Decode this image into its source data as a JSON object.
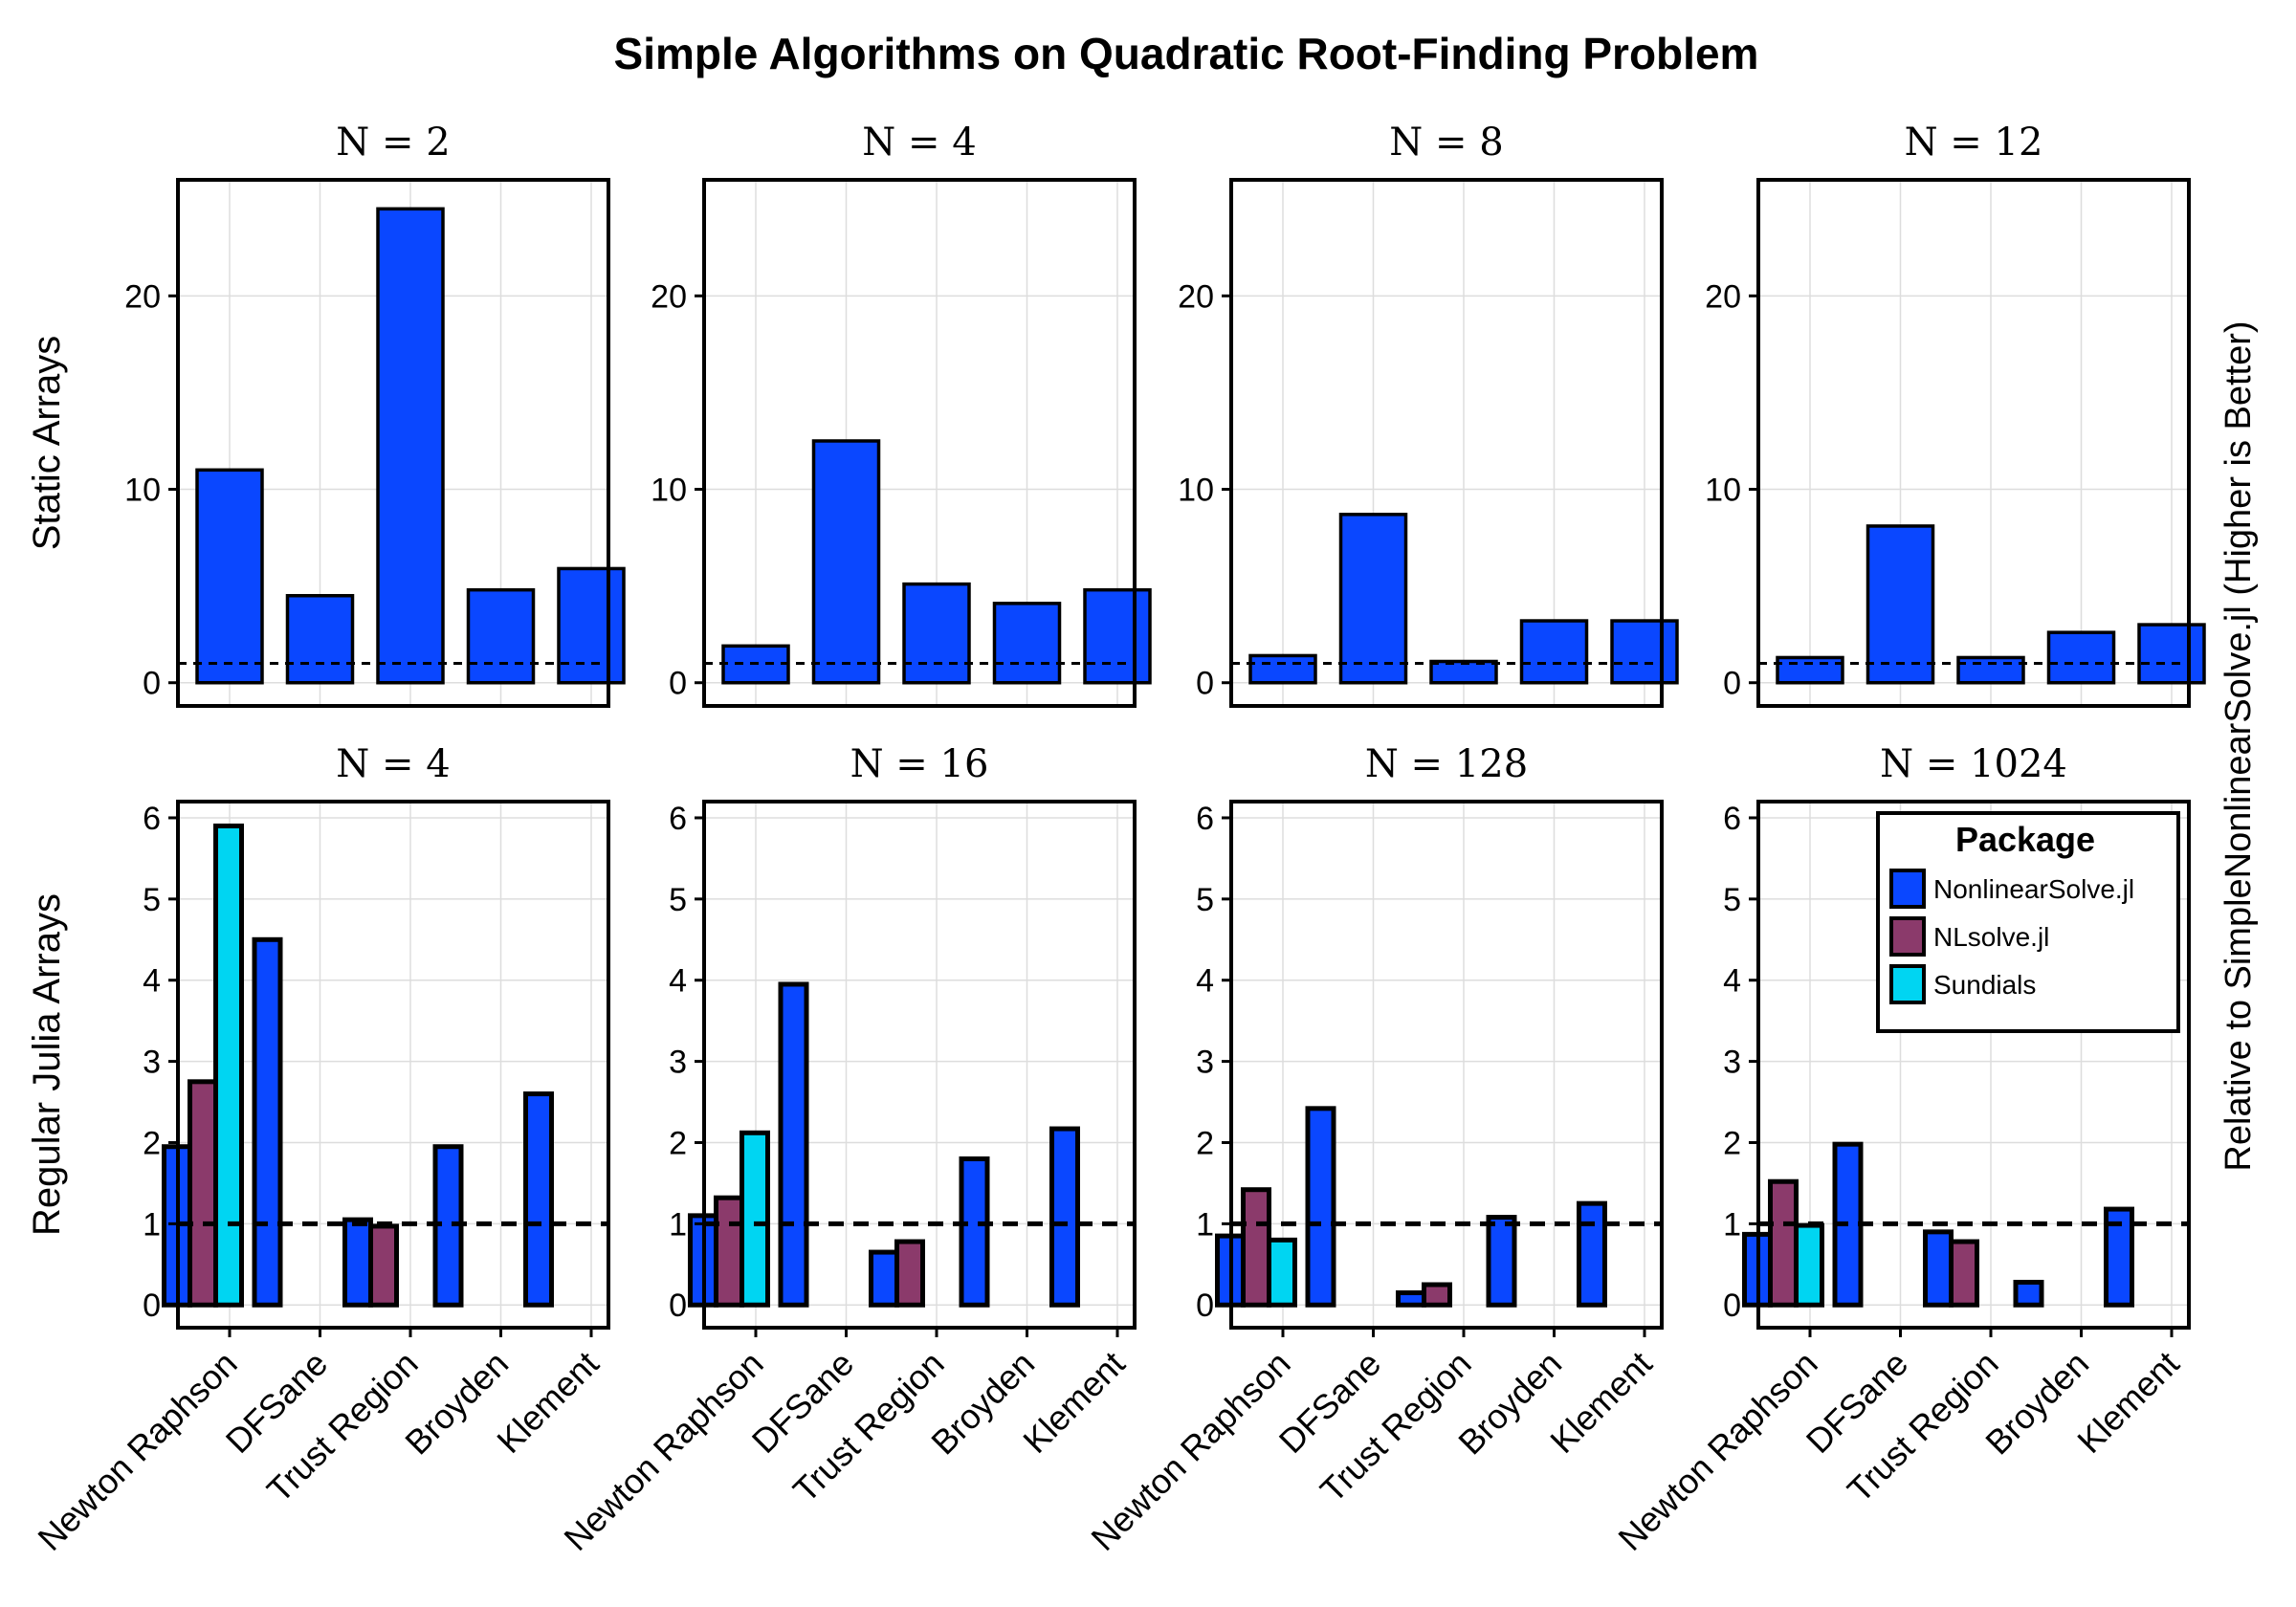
{
  "chart_data": {
    "type": "bar",
    "title": "Simple Algorithms on Quadratic Root-Finding Problem",
    "right_ylabel": "Relative to SimpleNonlinearSolve.jl (Higher is Better)",
    "categories": [
      "Newton Raphson",
      "DFSane",
      "Trust Region",
      "Broyden",
      "Klement"
    ],
    "reference_line": 1,
    "colors": {
      "NonlinearSolve.jl": "#0a47ff",
      "NLsolve.jl": "#8b3a6b",
      "Sundials": "#00d5f2"
    },
    "legend": {
      "title": "Package",
      "placement": "top-right",
      "entries": [
        "NonlinearSolve.jl",
        "NLsolve.jl",
        "Sundials"
      ]
    },
    "rows": [
      {
        "ylabel": "Static Arrays",
        "ylim": [
          -1.2,
          26
        ],
        "yticks": [
          0,
          10,
          20
        ],
        "panels": [
          {
            "title": "N = 2",
            "series": [
              {
                "name": "NonlinearSolve.jl",
                "values": [
                  11.0,
                  4.5,
                  24.5,
                  4.8,
                  5.9
                ]
              }
            ]
          },
          {
            "title": "N = 4",
            "series": [
              {
                "name": "NonlinearSolve.jl",
                "values": [
                  1.9,
                  12.5,
                  5.1,
                  4.1,
                  4.8
                ]
              }
            ]
          },
          {
            "title": "N = 8",
            "series": [
              {
                "name": "NonlinearSolve.jl",
                "values": [
                  1.4,
                  8.7,
                  1.1,
                  3.2,
                  3.2
                ]
              }
            ]
          },
          {
            "title": "N = 12",
            "series": [
              {
                "name": "NonlinearSolve.jl",
                "values": [
                  1.3,
                  8.1,
                  1.3,
                  2.6,
                  3.0
                ]
              }
            ]
          }
        ]
      },
      {
        "ylabel": "Regular Julia Arrays",
        "ylim": [
          -0.28,
          6.2
        ],
        "yticks": [
          0,
          1,
          2,
          3,
          4,
          5,
          6
        ],
        "panels": [
          {
            "title": "N = 4",
            "series": [
              {
                "name": "NonlinearSolve.jl",
                "values": [
                  1.95,
                  4.5,
                  1.05,
                  1.95,
                  2.6
                ]
              },
              {
                "name": "NLsolve.jl",
                "values": [
                  2.75,
                  null,
                  0.97,
                  null,
                  null
                ]
              },
              {
                "name": "Sundials",
                "values": [
                  5.9,
                  null,
                  null,
                  null,
                  null
                ]
              }
            ]
          },
          {
            "title": "N = 16",
            "series": [
              {
                "name": "NonlinearSolve.jl",
                "values": [
                  1.1,
                  3.95,
                  0.65,
                  1.8,
                  2.17
                ]
              },
              {
                "name": "NLsolve.jl",
                "values": [
                  1.32,
                  null,
                  0.78,
                  null,
                  null
                ]
              },
              {
                "name": "Sundials",
                "values": [
                  2.12,
                  null,
                  null,
                  null,
                  null
                ]
              }
            ]
          },
          {
            "title": "N = 128",
            "series": [
              {
                "name": "NonlinearSolve.jl",
                "values": [
                  0.85,
                  2.42,
                  0.15,
                  1.08,
                  1.25
                ]
              },
              {
                "name": "NLsolve.jl",
                "values": [
                  1.42,
                  null,
                  0.25,
                  null,
                  null
                ]
              },
              {
                "name": "Sundials",
                "values": [
                  0.8,
                  null,
                  null,
                  null,
                  null
                ]
              }
            ]
          },
          {
            "title": "N = 1024",
            "series": [
              {
                "name": "NonlinearSolve.jl",
                "values": [
                  0.87,
                  1.98,
                  0.9,
                  0.28,
                  1.18
                ]
              },
              {
                "name": "NLsolve.jl",
                "values": [
                  1.52,
                  null,
                  0.78,
                  null,
                  null
                ]
              },
              {
                "name": "Sundials",
                "values": [
                  0.98,
                  null,
                  null,
                  null,
                  null
                ]
              }
            ]
          }
        ]
      }
    ]
  }
}
